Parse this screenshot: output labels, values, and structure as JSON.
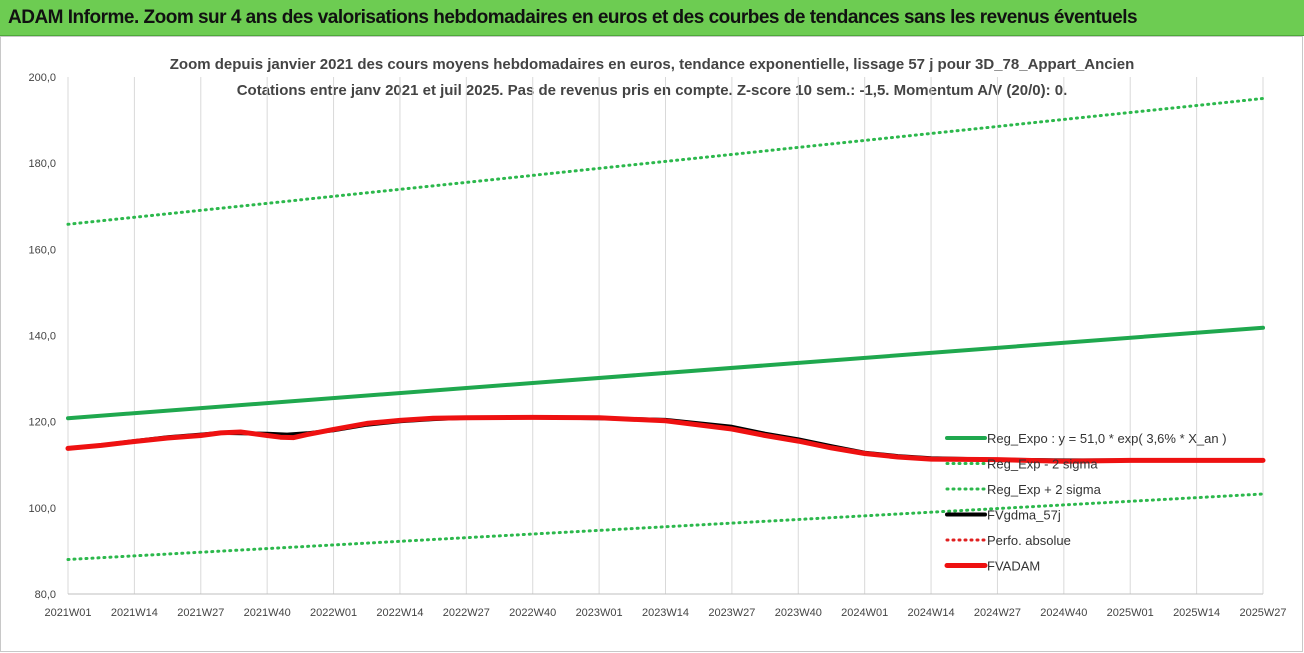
{
  "banner": {
    "text": "ADAM Informe. Zoom sur 4 ans des valorisations hebdomadaires en euros et des courbes de tendances sans les revenus éventuels"
  },
  "colors": {
    "banner_bg": "#6dcc52",
    "regression": "#1fa84e",
    "sigma_band": "#2cb84c",
    "fvgdma": "#000000",
    "perfo_absolue": "#e02020",
    "fvadam": "#ee1111",
    "gridline": "#d9d9d9"
  },
  "chart_data": {
    "type": "line",
    "title_lines": [
      "Zoom depuis janvier 2021 des cours moyens hebdomadaires en euros, tendance exponentielle, lissage 57 j pour 3D_78_Appart_Ancien",
      "Cotations entre janv 2021 et juil 2025. Pas de revenus pris en compte. Z-score 10 sem.: -1,5. Momentum A/V (20/0): 0."
    ],
    "x_tick_labels": [
      "2021W01",
      "2021W14",
      "2021W27",
      "2021W40",
      "2022W01",
      "2022W14",
      "2022W27",
      "2022W40",
      "2023W01",
      "2023W14",
      "2023W27",
      "2023W40",
      "2024W01",
      "2024W14",
      "2024W27",
      "2024W40",
      "2025W01",
      "2025W14",
      "2025W27"
    ],
    "y_tick_labels": [
      "80,0",
      "100,0",
      "120,0",
      "140,0",
      "160,0",
      "180,0",
      "200,0"
    ],
    "ylim": [
      80,
      200
    ],
    "grid": "vertical",
    "legend_position": "right",
    "series": [
      {
        "name": "Reg_Expo : y = 51,0 * exp( 3,6% *  X_an )",
        "style": "solid-thick",
        "color_key": "regression",
        "x_index": [
          0,
          18
        ],
        "y": [
          120.8,
          141.8
        ]
      },
      {
        "name": "Reg_Exp - 2 sigma",
        "style": "dotted",
        "color_key": "sigma_band",
        "x_index": [
          0,
          18
        ],
        "y": [
          88.0,
          103.2
        ]
      },
      {
        "name": "Reg_Exp + 2 sigma",
        "style": "dotted",
        "color_key": "sigma_band",
        "x_index": [
          0,
          18
        ],
        "y": [
          165.8,
          195.0
        ]
      },
      {
        "name": "FVgdma_57j",
        "style": "solid-thick",
        "color_key": "fvgdma",
        "x_index": [
          0,
          0.5,
          1,
          1.5,
          2,
          2.3,
          2.6,
          3,
          3.3,
          3.6,
          4,
          4.5,
          5,
          5.5,
          6,
          7,
          8,
          9,
          10,
          10.5,
          11,
          11.5,
          12,
          12.5,
          13,
          14,
          15,
          16,
          17,
          18
        ],
        "y": [
          113.8,
          114.5,
          115.5,
          116.4,
          117.0,
          117.4,
          117.3,
          117.2,
          117.0,
          117.3,
          118.0,
          119.3,
          120.1,
          120.6,
          120.9,
          121.0,
          120.8,
          120.4,
          118.8,
          117.2,
          115.9,
          114.3,
          112.8,
          112.0,
          111.5,
          111.2,
          111.0,
          111.0,
          111.0,
          111.0
        ]
      },
      {
        "name": "Perfo. absolue",
        "style": "dotted",
        "color_key": "perfo_absolue",
        "x_index": [],
        "y": []
      },
      {
        "name": "FVADAM",
        "style": "solid-thicker",
        "color_key": "fvadam",
        "x_index": [
          0,
          0.5,
          1,
          1.5,
          2,
          2.3,
          2.6,
          3,
          3.2,
          3.4,
          3.6,
          4,
          4.5,
          5,
          5.5,
          6,
          7,
          8,
          9,
          10,
          10.5,
          11,
          11.5,
          12,
          12.5,
          13,
          14,
          15,
          16,
          17,
          18
        ],
        "y": [
          113.8,
          114.5,
          115.4,
          116.2,
          116.8,
          117.4,
          117.6,
          116.8,
          116.4,
          116.3,
          117.0,
          118.2,
          119.6,
          120.3,
          120.8,
          120.9,
          121.0,
          120.9,
          120.2,
          118.3,
          116.8,
          115.5,
          113.9,
          112.6,
          111.8,
          111.3,
          111.2,
          110.8,
          111.0,
          111.0,
          111.0
        ]
      }
    ]
  }
}
